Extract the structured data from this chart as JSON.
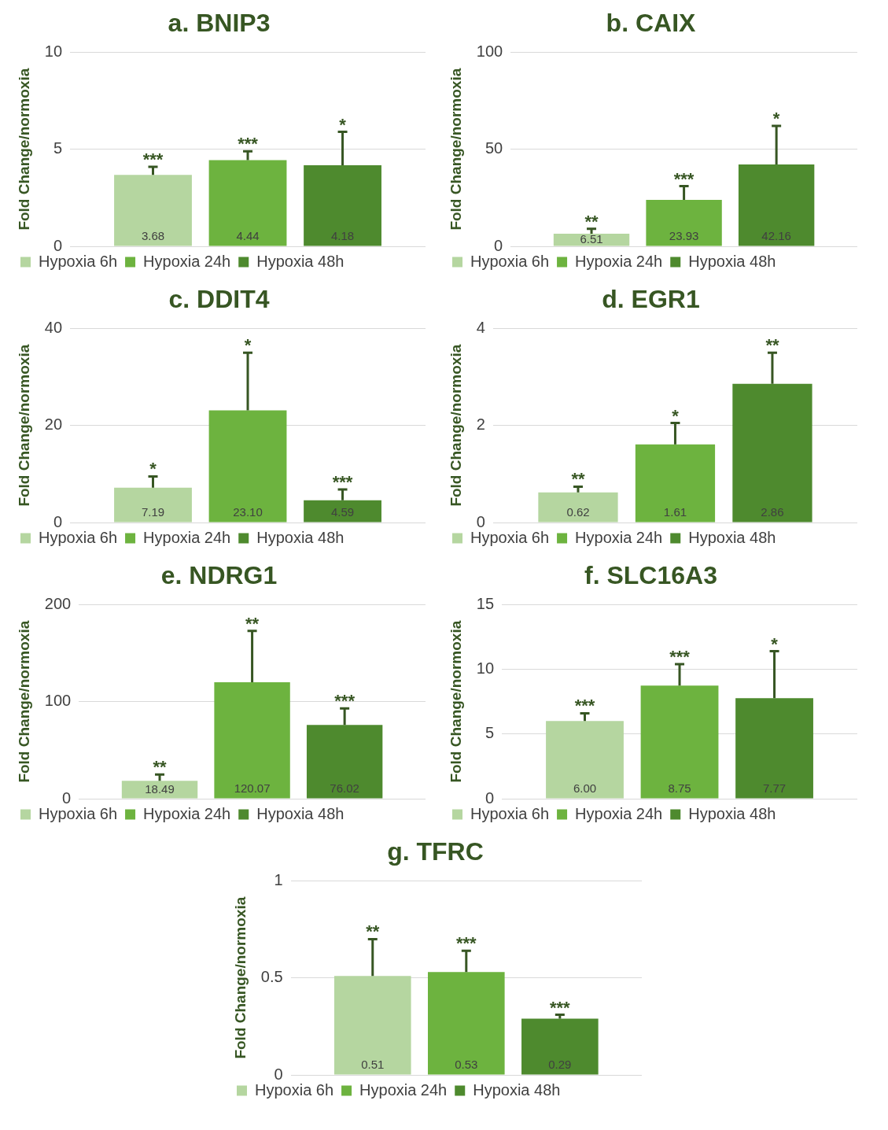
{
  "chart_data": [
    {
      "type": "bar",
      "title": "a. BNIP3",
      "ylabel": "Fold Change/normoxia",
      "categories": [
        null
      ],
      "ylim": [
        0,
        10
      ],
      "yticks": [
        0,
        5,
        10
      ],
      "grid": "y",
      "legend": "bottom",
      "series": [
        {
          "name": "Hypoxia 6h",
          "color": "#b5d6a0",
          "values": [
            3.68
          ],
          "value_labels": [
            "3.68"
          ],
          "errors": [
            [
              3.68,
              4.1
            ]
          ]
        },
        {
          "name": "Hypoxia 24h",
          "color": "#6db33f",
          "values": [
            4.44
          ],
          "value_labels": [
            "4.44"
          ],
          "errors": [
            [
              4.44,
              4.9
            ]
          ]
        },
        {
          "name": "Hypoxia 48h",
          "color": "#4e8a2e",
          "values": [
            4.18
          ],
          "value_labels": [
            "4.18"
          ],
          "errors": [
            [
              4.18,
              5.9
            ]
          ]
        }
      ],
      "annotations": [
        {
          "text": "***",
          "y": 4.1
        },
        {
          "text": "***",
          "y": 4.9
        },
        {
          "text": "*",
          "y": 5.9
        }
      ]
    },
    {
      "type": "bar",
      "title": "b. CAIX",
      "ylabel": "Fold Change/normoxia",
      "categories": [
        null
      ],
      "ylim": [
        0,
        100
      ],
      "yticks": [
        0,
        50,
        100
      ],
      "grid": "y",
      "legend": "bottom",
      "series": [
        {
          "name": "Hypoxia 6h",
          "color": "#b5d6a0",
          "values": [
            6.51
          ],
          "value_labels": [
            "6.51"
          ],
          "errors": [
            [
              6.51,
              9
            ]
          ]
        },
        {
          "name": "Hypoxia 24h",
          "color": "#6db33f",
          "values": [
            23.93
          ],
          "value_labels": [
            "23.93"
          ],
          "errors": [
            [
              23.93,
              31
            ]
          ]
        },
        {
          "name": "Hypoxia 48h",
          "color": "#4e8a2e",
          "values": [
            42.16
          ],
          "value_labels": [
            "42.16"
          ],
          "errors": [
            [
              42.16,
              62
            ]
          ]
        }
      ],
      "annotations": [
        {
          "text": "**",
          "y": 9
        },
        {
          "text": "***",
          "y": 31
        },
        {
          "text": "*",
          "y": 62
        }
      ]
    },
    {
      "type": "bar",
      "title": "c. DDIT4",
      "ylabel": "Fold Change/normoxia",
      "categories": [
        null
      ],
      "ylim": [
        0,
        40
      ],
      "yticks": [
        0,
        20,
        40
      ],
      "grid": "y",
      "legend": "bottom",
      "series": [
        {
          "name": "Hypoxia 6h",
          "color": "#b5d6a0",
          "values": [
            7.19
          ],
          "value_labels": [
            "7.19"
          ],
          "errors": [
            [
              7.19,
              9.5
            ]
          ]
        },
        {
          "name": "Hypoxia 24h",
          "color": "#6db33f",
          "values": [
            23.1
          ],
          "value_labels": [
            "23.10"
          ],
          "errors": [
            [
              23.1,
              35
            ]
          ]
        },
        {
          "name": "Hypoxia 48h",
          "color": "#4e8a2e",
          "values": [
            4.59
          ],
          "value_labels": [
            "4.59"
          ],
          "errors": [
            [
              4.59,
              6.8
            ]
          ]
        }
      ],
      "annotations": [
        {
          "text": "*",
          "y": 9.5
        },
        {
          "text": "*",
          "y": 35
        },
        {
          "text": "***",
          "y": 6.8
        }
      ]
    },
    {
      "type": "bar",
      "title": "d. EGR1",
      "ylabel": "Fold Change/normoxia",
      "categories": [
        null
      ],
      "ylim": [
        0,
        4
      ],
      "yticks": [
        0,
        2,
        4
      ],
      "grid": "y",
      "legend": "bottom",
      "series": [
        {
          "name": "Hypoxia 6h",
          "color": "#b5d6a0",
          "values": [
            0.62
          ],
          "value_labels": [
            "0.62"
          ],
          "errors": [
            [
              0.62,
              0.74
            ]
          ]
        },
        {
          "name": "Hypoxia 24h",
          "color": "#6db33f",
          "values": [
            1.61
          ],
          "value_labels": [
            "1.61"
          ],
          "errors": [
            [
              1.61,
              2.05
            ]
          ]
        },
        {
          "name": "Hypoxia 48h",
          "color": "#4e8a2e",
          "values": [
            2.86
          ],
          "value_labels": [
            "2.86"
          ],
          "errors": [
            [
              2.86,
              3.5
            ]
          ]
        }
      ],
      "annotations": [
        {
          "text": "**",
          "y": 0.74
        },
        {
          "text": "*",
          "y": 2.05
        },
        {
          "text": "**",
          "y": 3.5
        }
      ]
    },
    {
      "type": "bar",
      "title": "e. NDRG1",
      "ylabel": "Fold Change/normoxia",
      "categories": [
        null
      ],
      "ylim": [
        0,
        200
      ],
      "yticks": [
        0,
        100,
        200
      ],
      "grid": "y",
      "legend": "bottom",
      "series": [
        {
          "name": "Hypoxia 6h",
          "color": "#b5d6a0",
          "values": [
            18.49
          ],
          "value_labels": [
            "18.49"
          ],
          "errors": [
            [
              18.49,
              25
            ]
          ]
        },
        {
          "name": "Hypoxia 24h",
          "color": "#6db33f",
          "values": [
            120.07
          ],
          "value_labels": [
            "120.07"
          ],
          "errors": [
            [
              120.07,
              173
            ]
          ]
        },
        {
          "name": "Hypoxia 48h",
          "color": "#4e8a2e",
          "values": [
            76.02
          ],
          "value_labels": [
            "76.02"
          ],
          "errors": [
            [
              76.02,
              93
            ]
          ]
        }
      ],
      "annotations": [
        {
          "text": "**",
          "y": 25
        },
        {
          "text": "**",
          "y": 173
        },
        {
          "text": "***",
          "y": 93
        }
      ]
    },
    {
      "type": "bar",
      "title": "f. SLC16A3",
      "ylabel": "Fold Change/normoxia",
      "categories": [
        null
      ],
      "ylim": [
        0,
        15
      ],
      "yticks": [
        0,
        5,
        10,
        15
      ],
      "grid": "y",
      "legend": "bottom",
      "series": [
        {
          "name": "Hypoxia 6h",
          "color": "#b5d6a0",
          "values": [
            6.0
          ],
          "value_labels": [
            "6.00"
          ],
          "errors": [
            [
              6.0,
              6.6
            ]
          ]
        },
        {
          "name": "Hypoxia 24h",
          "color": "#6db33f",
          "values": [
            8.75
          ],
          "value_labels": [
            "8.75"
          ],
          "errors": [
            [
              8.75,
              10.4
            ]
          ]
        },
        {
          "name": "Hypoxia 48h",
          "color": "#4e8a2e",
          "values": [
            7.77
          ],
          "value_labels": [
            "7.77"
          ],
          "errors": [
            [
              7.77,
              11.4
            ]
          ]
        }
      ],
      "annotations": [
        {
          "text": "***",
          "y": 6.6
        },
        {
          "text": "***",
          "y": 10.4
        },
        {
          "text": "*",
          "y": 11.4
        }
      ]
    },
    {
      "type": "bar",
      "title": "g. TFRC",
      "ylabel": "Fold Change/normoxia",
      "categories": [
        null
      ],
      "ylim": [
        0,
        1
      ],
      "yticks": [
        0,
        {
          "value": 0.5,
          "label": "0.5"
        },
        1
      ],
      "grid": "y",
      "legend": "bottom",
      "series": [
        {
          "name": "Hypoxia 6h",
          "color": "#b5d6a0",
          "values": [
            0.51
          ],
          "value_labels": [
            "0.51"
          ],
          "errors": [
            [
              0.51,
              0.7
            ]
          ]
        },
        {
          "name": "Hypoxia 24h",
          "color": "#6db33f",
          "values": [
            0.53
          ],
          "value_labels": [
            "0.53"
          ],
          "errors": [
            [
              0.53,
              0.64
            ]
          ]
        },
        {
          "name": "Hypoxia 48h",
          "color": "#4e8a2e",
          "values": [
            0.29
          ],
          "value_labels": [
            "0.29"
          ],
          "errors": [
            [
              0.29,
              0.31
            ]
          ]
        }
      ],
      "annotations": [
        {
          "text": "**",
          "y": 0.7
        },
        {
          "text": "***",
          "y": 0.64
        },
        {
          "text": "***",
          "y": 0.31
        }
      ]
    }
  ]
}
